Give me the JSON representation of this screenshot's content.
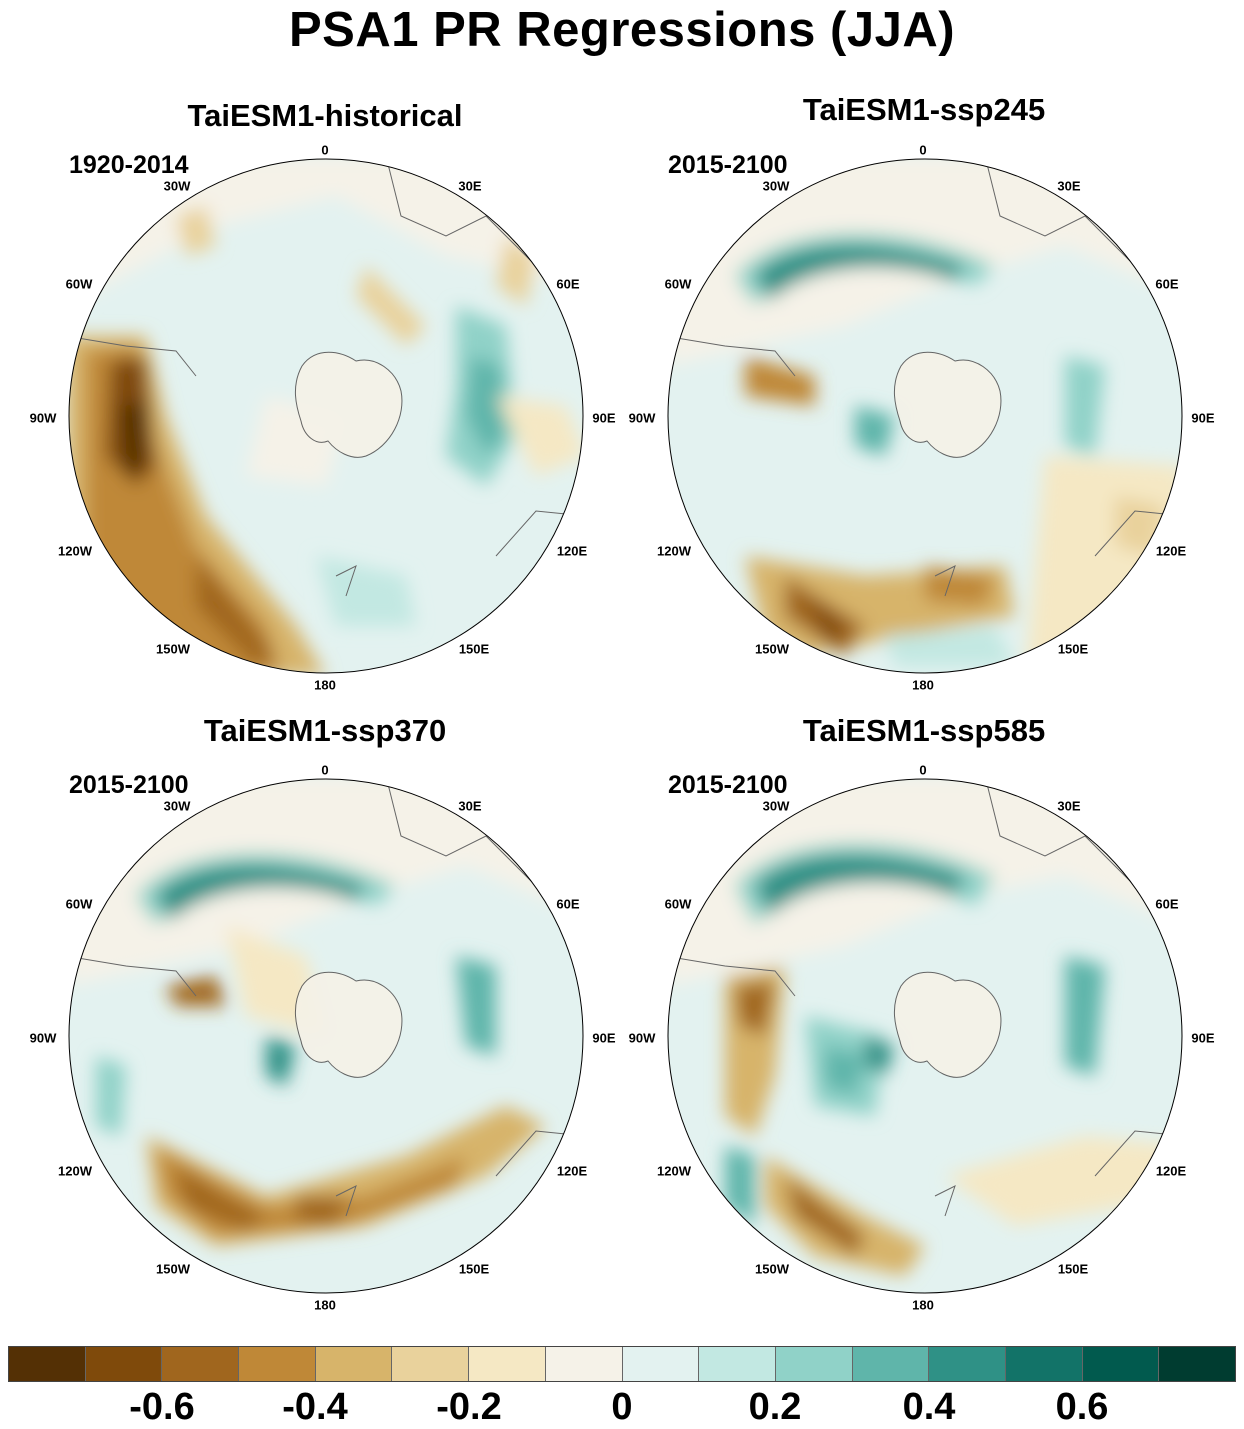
{
  "title": "PSA1 PR Regressions (JJA)",
  "panels": [
    {
      "title": "TaiESM1-historical",
      "period": "1920-2014"
    },
    {
      "title": "TaiESM1-ssp245",
      "period": "2015-2100"
    },
    {
      "title": "TaiESM1-ssp370",
      "period": "2015-2100"
    },
    {
      "title": "TaiESM1-ssp585",
      "period": "2015-2100"
    }
  ],
  "longitude_labels": [
    "0",
    "30E",
    "60E",
    "90E",
    "120E",
    "150E",
    "180",
    "150W",
    "120W",
    "90W",
    "60W",
    "30W"
  ],
  "colorbar": {
    "colors": [
      "#543005",
      "#7f4a0b",
      "#a0661e",
      "#bf8837",
      "#d7b46a",
      "#e9d29c",
      "#f5e8c4",
      "#f5f2e8",
      "#e3f2f0",
      "#c2e8e2",
      "#90d2c8",
      "#5fb5aa",
      "#2f9186",
      "#127368",
      "#015a4e",
      "#003c30"
    ],
    "tick_labels": [
      "-0.6",
      "-0.4",
      "-0.2",
      "0",
      "0.2",
      "0.4",
      "0.6"
    ]
  }
}
